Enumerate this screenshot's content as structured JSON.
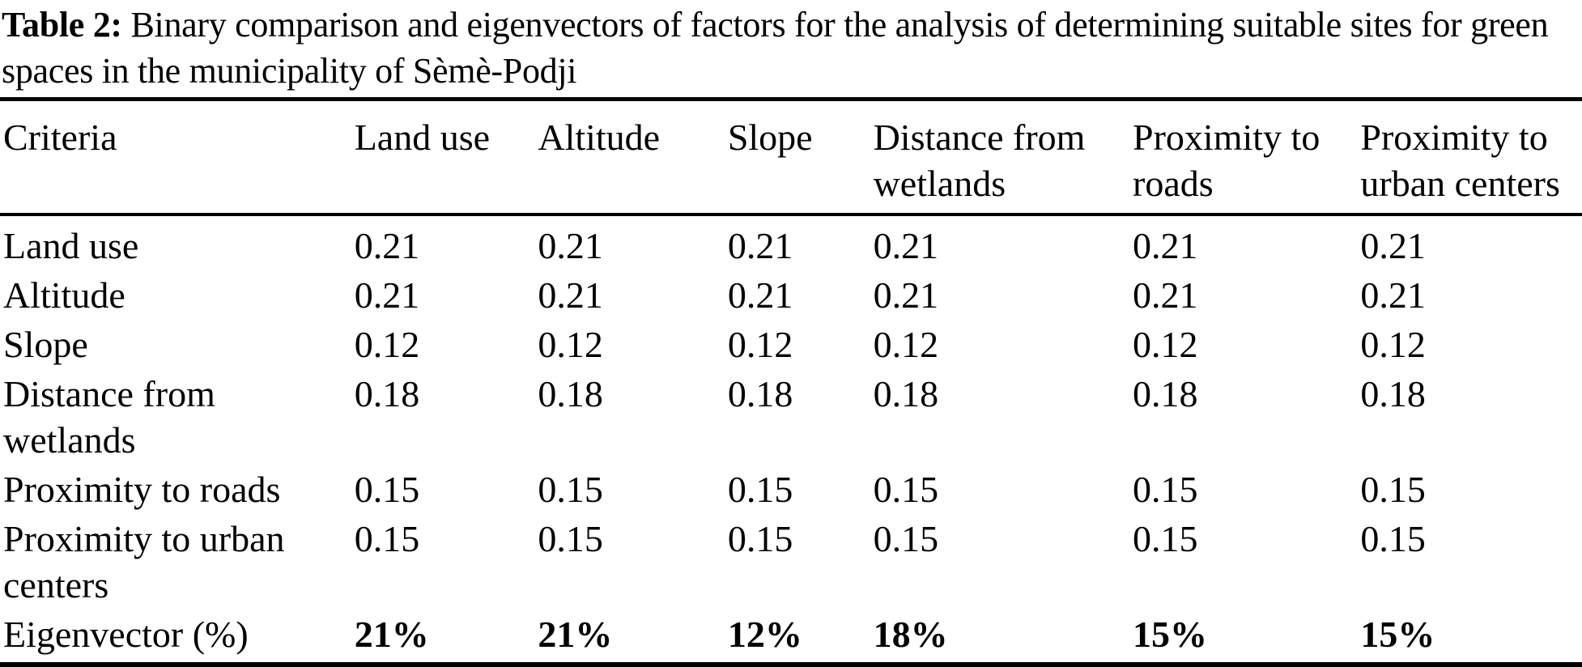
{
  "caption": {
    "label": "Table 2:",
    "text": "Binary comparison and eigenvectors of factors for the analysis of determining suitable sites for green spaces in the municipality of Sèmè-Podji"
  },
  "table": {
    "columns": [
      "Criteria",
      "Land use",
      "Altitude",
      "Slope",
      "Distance from wetlands",
      "Proximity to roads",
      "Proximity to urban centers"
    ],
    "rows": [
      {
        "criteria": "Land use",
        "values": [
          "0.21",
          "0.21",
          "0.21",
          "0.21",
          "0.21",
          "0.21"
        ]
      },
      {
        "criteria": "Altitude",
        "values": [
          "0.21",
          "0.21",
          "0.21",
          "0.21",
          "0.21",
          "0.21"
        ]
      },
      {
        "criteria": "Slope",
        "values": [
          "0.12",
          "0.12",
          "0.12",
          "0.12",
          "0.12",
          "0.12"
        ]
      },
      {
        "criteria": "Distance from wetlands",
        "values": [
          "0.18",
          "0.18",
          "0.18",
          "0.18",
          "0.18",
          "0.18"
        ]
      },
      {
        "criteria": "Proximity to roads",
        "values": [
          "0.15",
          "0.15",
          "0.15",
          "0.15",
          "0.15",
          "0.15"
        ]
      },
      {
        "criteria": "Proximity to urban centers",
        "values": [
          "0.15",
          "0.15",
          "0.15",
          "0.15",
          "0.15",
          "0.15"
        ]
      }
    ],
    "summary_row": {
      "criteria": "Eigenvector (%)",
      "values": [
        "21%",
        "21%",
        "12%",
        "18%",
        "15%",
        "15%"
      ]
    }
  },
  "colors": {
    "text": "#000000",
    "background": "#ffffff",
    "rule": "#000000"
  }
}
